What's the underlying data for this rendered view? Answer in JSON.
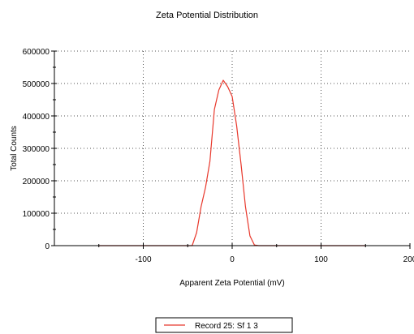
{
  "chart_data": {
    "type": "line",
    "title": "Zeta Potential Distribution",
    "xlabel": "Apparent Zeta Potential (mV)",
    "ylabel": "Total Counts",
    "xlim": [
      -200,
      200
    ],
    "ylim": [
      0,
      600000
    ],
    "x_ticks": [
      -100,
      0,
      100,
      200
    ],
    "x_tick_labels": [
      "-100",
      "0",
      "100",
      "200"
    ],
    "y_ticks": [
      0,
      100000,
      200000,
      300000,
      400000,
      500000,
      600000
    ],
    "y_tick_labels": [
      "0",
      "100000",
      "200000",
      "300000",
      "400000",
      "500000",
      "600000"
    ],
    "grid": true,
    "legend_position": "bottom-center",
    "series": [
      {
        "name": "Record 25: Sf 1 3",
        "color": "#e8382c",
        "x": [
          -150,
          -45,
          -40,
          -35,
          -30,
          -25,
          -20,
          -15,
          -10,
          -5,
          0,
          5,
          10,
          15,
          20,
          25,
          30,
          150
        ],
        "y": [
          0,
          0,
          40000,
          120000,
          180000,
          260000,
          420000,
          480000,
          510000,
          490000,
          460000,
          370000,
          250000,
          120000,
          30000,
          2000,
          0,
          0
        ]
      }
    ]
  }
}
